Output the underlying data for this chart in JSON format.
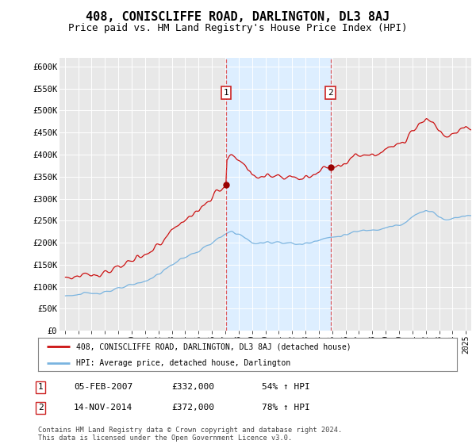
{
  "title": "408, CONISCLIFFE ROAD, DARLINGTON, DL3 8AJ",
  "subtitle": "Price paid vs. HM Land Registry's House Price Index (HPI)",
  "title_fontsize": 11,
  "subtitle_fontsize": 9,
  "ylim": [
    0,
    620000
  ],
  "yticks": [
    0,
    50000,
    100000,
    150000,
    200000,
    250000,
    300000,
    350000,
    400000,
    450000,
    500000,
    550000,
    600000
  ],
  "ytick_labels": [
    "£0",
    "£50K",
    "£100K",
    "£150K",
    "£200K",
    "£250K",
    "£300K",
    "£350K",
    "£400K",
    "£450K",
    "£500K",
    "£550K",
    "£600K"
  ],
  "hpi_color": "#7ab4e0",
  "price_color": "#cc1111",
  "marker_color": "#990000",
  "vline_color": "#dd4444",
  "shade_color": "#ddeeff",
  "sale1_date_num": 2007.08,
  "sale1_price": 332000,
  "sale2_date_num": 2014.87,
  "sale2_price": 372000,
  "legend_house_label": "408, CONISCLIFFE ROAD, DARLINGTON, DL3 8AJ (detached house)",
  "legend_hpi_label": "HPI: Average price, detached house, Darlington",
  "table_row1": [
    "1",
    "05-FEB-2007",
    "£332,000",
    "54% ↑ HPI"
  ],
  "table_row2": [
    "2",
    "14-NOV-2014",
    "£372,000",
    "78% ↑ HPI"
  ],
  "footer": "Contains HM Land Registry data © Crown copyright and database right 2024.\nThis data is licensed under the Open Government Licence v3.0.",
  "background_color": "#ffffff",
  "plot_bg_color": "#e8e8e8"
}
